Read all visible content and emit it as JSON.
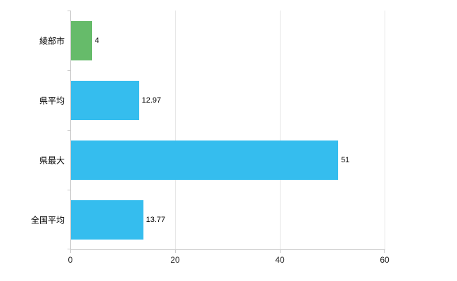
{
  "chart_data": {
    "type": "bar",
    "orientation": "horizontal",
    "title": "",
    "xlabel": "",
    "ylabel": "",
    "categories": [
      "綾部市",
      "県平均",
      "県最大",
      "全国平均"
    ],
    "values": [
      4,
      12.97,
      51,
      13.77
    ],
    "value_labels": [
      "4",
      "12.97",
      "51",
      "13.77"
    ],
    "bar_colors": [
      "#66bb6a",
      "#35bdee",
      "#35bdee",
      "#35bdee"
    ],
    "xlim": [
      0,
      60
    ],
    "x_ticks": [
      0,
      20,
      40,
      60
    ],
    "x_tick_labels": [
      "0",
      "20",
      "40",
      "60"
    ],
    "grid": true,
    "legend": "none",
    "colors": {
      "axis_line": "#c9c9c9",
      "gridline": "#e6e6e6",
      "label_text": "#000000",
      "tick_text": "#222222",
      "background": "#ffffff"
    }
  }
}
